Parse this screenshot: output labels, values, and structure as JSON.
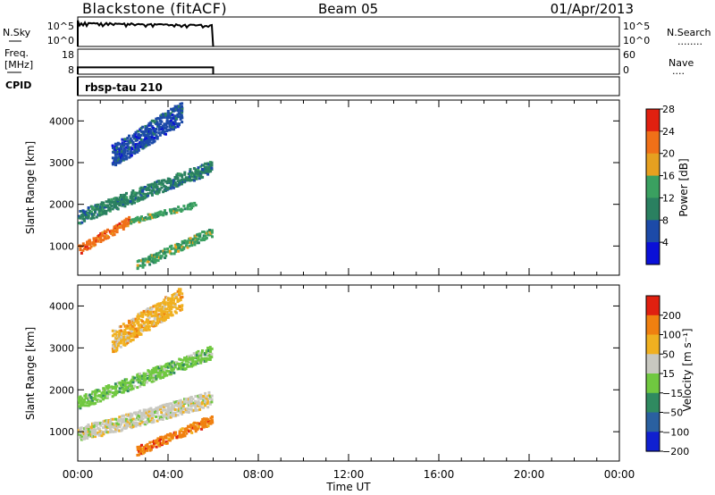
{
  "header": {
    "station": "Blackstone (fitACF)",
    "beam": "Beam 05",
    "date": "01/Apr/2013"
  },
  "side_labels": {
    "nsky": "N.Sky",
    "freq_line1": "Freq.",
    "freq_line2": "[MHz]",
    "cpid": "CPID",
    "nsearch": "N.Search",
    "nave": "Nave",
    "nsearch_dots": "........",
    "nave_dots": "...."
  },
  "cpid_name": "rbsp-tau 210",
  "chart_data": [
    {
      "type": "line",
      "panel": "noise",
      "left_axis_ticks": [
        "10^5",
        "10^0"
      ],
      "right_axis_ticks": [
        "10^5",
        "10^0"
      ],
      "x_range_hours": [
        0,
        6
      ],
      "series": [
        {
          "name": "N.Sky",
          "level": 0.82
        }
      ]
    },
    {
      "type": "line",
      "panel": "frequency",
      "left_axis_ticks": [
        "18",
        "8"
      ],
      "right_axis_ticks": [
        "60",
        "0"
      ],
      "y_range_left": [
        8,
        18
      ],
      "x_range_hours": [
        0,
        6
      ],
      "series": [
        {
          "name": "Freq.",
          "value_mhz": 10.7
        }
      ]
    },
    {
      "type": "heatmap",
      "panel": "power",
      "ylabel": "Slant Range [km]",
      "yticks": [
        1000,
        2000,
        3000,
        4000
      ],
      "ylim": [
        300,
        4500
      ],
      "xlim_hours": [
        0,
        24
      ],
      "data_extent_hours": [
        0,
        6
      ],
      "colorbar_label": "Power [dB]",
      "colorbar_ticks": [
        "4",
        "8",
        "12",
        "16",
        "20",
        "24",
        "28"
      ],
      "colors": [
        "#0a10d8",
        "#1c4aa8",
        "#2a8060",
        "#3aa060",
        "#e6a020",
        "#f07018",
        "#e02010"
      ],
      "bands": [
        {
          "t0": 0.0,
          "r0": 900,
          "t1": 2.3,
          "r1": 1600,
          "width": 180,
          "color_index": 5
        },
        {
          "t0": 2.3,
          "r0": 1600,
          "t1": 5.2,
          "r1": 2000,
          "width": 120,
          "color_index": 3
        },
        {
          "t0": 0.0,
          "r0": 1700,
          "t1": 5.9,
          "r1": 2900,
          "width": 300,
          "color_index": 2
        },
        {
          "t0": 2.6,
          "r0": 550,
          "t1": 5.9,
          "r1": 1350,
          "width": 220,
          "color_index": 3
        },
        {
          "t0": 1.5,
          "r0": 3150,
          "t1": 4.6,
          "r1": 4200,
          "width": 500,
          "color_index": 1
        }
      ]
    },
    {
      "type": "heatmap",
      "panel": "velocity",
      "ylabel": "Slant Range [km]",
      "yticks": [
        1000,
        2000,
        3000,
        4000
      ],
      "ylim": [
        300,
        4500
      ],
      "xlim_hours": [
        0,
        24
      ],
      "data_extent_hours": [
        0,
        6
      ],
      "colorbar_label": "Velocity [m s⁻¹]",
      "colorbar_ticks": [
        "200",
        "100",
        "50",
        "15",
        "−15",
        "−50",
        "−100",
        "−200"
      ],
      "colors": [
        "#1020d0",
        "#2a60a0",
        "#2f8a60",
        "#70c840",
        "#c8c8c0",
        "#f0b020",
        "#f08010",
        "#e02010"
      ],
      "bands": [
        {
          "t0": 0.0,
          "r0": 950,
          "t1": 5.9,
          "r1": 1800,
          "width": 350,
          "color_index": 4
        },
        {
          "t0": 0.0,
          "r0": 1700,
          "t1": 5.9,
          "r1": 2900,
          "width": 300,
          "color_index": 3
        },
        {
          "t0": 2.6,
          "r0": 550,
          "t1": 5.9,
          "r1": 1300,
          "width": 220,
          "color_index": 6
        },
        {
          "t0": 1.5,
          "r0": 3150,
          "t1": 4.6,
          "r1": 4200,
          "width": 500,
          "color_index": 5
        }
      ]
    }
  ],
  "time_axis": {
    "label": "Time UT",
    "ticks": [
      "00:00",
      "04:00",
      "08:00",
      "12:00",
      "16:00",
      "20:00",
      "00:00"
    ],
    "range_hours": [
      0,
      24
    ]
  }
}
